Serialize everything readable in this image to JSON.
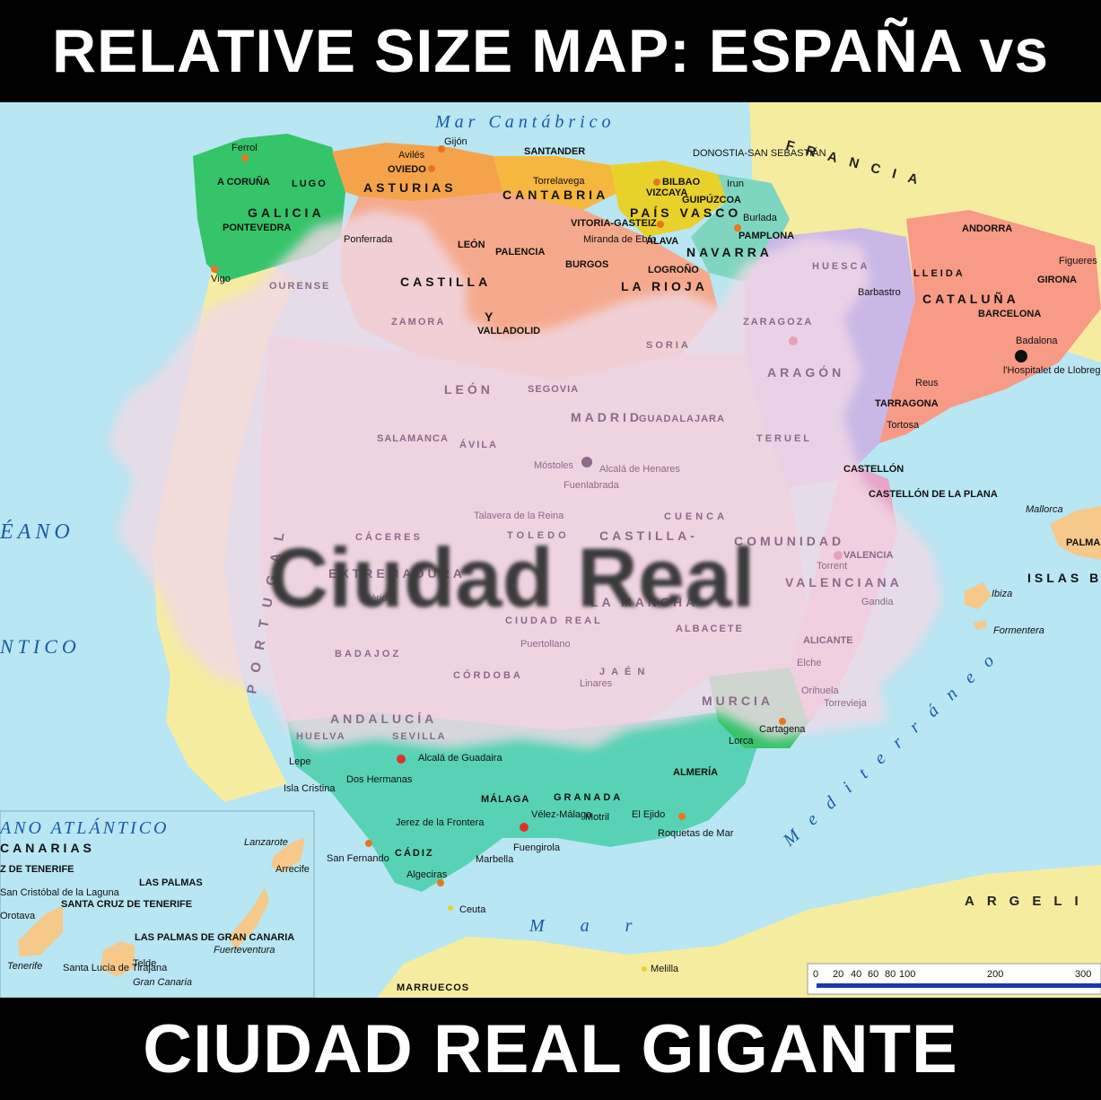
{
  "header": {
    "title": "RELATIVE SIZE MAP: ESPAÑA vs"
  },
  "footer": {
    "title": "CIUDAD REAL GIGANTE"
  },
  "overlay": {
    "label": "Ciudad Real"
  },
  "seas": {
    "cantabrico": "Mar Cantábrico",
    "oceano_left": "ÉANO",
    "atlantico_left": "NTICO",
    "mediterraneo": "Mediterráneo",
    "mar_bottom": "Mar",
    "canarias_ocean": "ANO ATLÁNTICO"
  },
  "countries": {
    "francia": "FRANCIA",
    "andorra": "ANDORRA",
    "portugal": "PORTUGAL",
    "argelia": "ARGELI",
    "marruecos": "MARRUECOS"
  },
  "regions": {
    "galicia": "GALICIA",
    "asturias": "ASTURIAS",
    "cantabria": "CANTABRIA",
    "pais_vasco": "PAÍS VASCO",
    "navarra": "NAVARRA",
    "la_rioja": "LA RIOJA",
    "castilla": "CASTILLA",
    "leon_region": "LEÓN",
    "y": "Y",
    "aragon": "ARAGÓN",
    "cataluna": "CATALUÑA",
    "madrid_region": "MADRID",
    "comunidad": "COMUNIDAD",
    "valenciana": "VALENCIANA",
    "murcia": "MURCIA",
    "andalucia": "ANDALUCÍA",
    "extremadura": "EXTREMADURA",
    "castilla_mancha_1": "CASTILLA-",
    "castilla_mancha_2": "LA MANCHA",
    "islas_baleares": "ISLAS B",
    "canarias": "CANARIAS"
  },
  "provinces": {
    "a_coruna": "A CORUÑA",
    "lugo": "LUGO",
    "ourense": "OURENSE",
    "pontevedra": "PONTEVEDRA",
    "oviedo": "OVIEDO",
    "santander": "SANTANDER",
    "bilbao": "BILBAO",
    "vizcaya": "VIZCAYA",
    "guipuzcoa": "GUIPÚZCOA",
    "alava": "ÁLAVA",
    "pamplona": "PAMPLONA",
    "logrono": "LOGROÑO",
    "burgos": "BURGOS",
    "palencia": "PALENCIA",
    "leon": "LEÓN",
    "zamora": "ZAMORA",
    "valladolid": "VALLADOLID",
    "soria": "SORIA",
    "segovia": "SEGOVIA",
    "avila": "ÁVILA",
    "salamanca": "SALAMANCA",
    "huesca": "HUESCA",
    "zaragoza": "ZARAGOZA",
    "teruel": "TERUEL",
    "lleida": "LLEIDA",
    "girona": "GIRONA",
    "barcelona": "BARCELONA",
    "tarragona": "TARRAGONA",
    "guadalajara": "GUADALAJARA",
    "cuenca": "CUENCA",
    "toledo": "TOLEDO",
    "caceres": "CÁCERES",
    "badajoz": "BADAJOZ",
    "ciudad_real": "CIUDAD REAL",
    "albacete": "ALBACETE",
    "castellon": "CASTELLÓN",
    "valencia": "VALENCIA",
    "alicante": "ALICANTE",
    "cordoba": "CÓRDOBA",
    "jaen": "JAÉN",
    "huelva": "HUELVA",
    "sevilla": "SEVILLA",
    "cadiz": "CÁDIZ",
    "malaga": "MÁLAGA",
    "granada": "GRANADA",
    "almeria": "ALMERÍA",
    "las_palmas": "LAS PALMAS",
    "santa_cruz": "SANTA CRUZ DE TENERIFE"
  },
  "cities": {
    "ferrol": "Ferrol",
    "gijon": "Gijón",
    "aviles": "Avilés",
    "vigo": "Vigo",
    "ponferrada": "Ponferrada",
    "torrelavega": "Torrelavega",
    "donostia": "DONOSTIA-SAN SEBASTIÁN",
    "irun": "Irun",
    "vitoria": "VITORIA-GASTEIZ",
    "miranda": "Miranda de Ebro",
    "burlada": "Burlada",
    "barbastro": "Barbastro",
    "figueres": "Figueres",
    "badalona": "Badalona",
    "hospitalet": "l'Hospitalet de Llobregat",
    "reus": "Reus",
    "tortosa": "Tortosa",
    "mostoles": "Móstoles",
    "fuenlabrada": "Fuenlabrada",
    "alcala_henares": "Alcalá de Henares",
    "talavera": "Talavera de la Reina",
    "merida": "Mérida",
    "puertollano": "Puertollano",
    "castellon_plana": "CASTELLÓN DE LA PLANA",
    "torrent": "Torrent",
    "gandia": "Gandia",
    "elche": "Elche",
    "orihuela": "Orihuela",
    "torrevieja": "Torrevieja",
    "cartagena": "Cartagena",
    "lorca": "Lorca",
    "linares": "Linares",
    "alcala_guadaira": "Alcalá de Guadaira",
    "dos_hermanas": "Dos Hermanas",
    "jerez": "Jerez de la Frontera",
    "algeciras": "Algeciras",
    "marbella": "Marbella",
    "fuengirola": "Fuengirola",
    "velez_malaga": "Vélez-Málaga",
    "motril": "Motril",
    "el_ejido": "El Ejido",
    "roquetas": "Roquetas de Mar",
    "ceuta": "Ceuta",
    "melilla": "Melilla",
    "san_fernando": "San Fernando",
    "lepe": "Lepe",
    "isla_cristina": "Isla Cristina",
    "lorca_label": "Lorca",
    "mallorca": "Mallorca",
    "ibiza": "Ibiza",
    "formentera": "Formentera",
    "palma": "PALMA",
    "lanzarote": "Lanzarote",
    "arrecife": "Arrecife",
    "fuerteventura": "Fuerteventura",
    "gran_canaria": "Gran Canaria",
    "tenerife": "Tenerife",
    "telde": "Telde",
    "las_palmas_gc": "LAS PALMAS DE GRAN CANARIA",
    "santa_lucia": "Santa Lucía de Tirajana",
    "la_laguna": "San Cristóbal de la Laguna",
    "orotava": "Orotava",
    "z_tenerife": "Z DE TENERIFE"
  },
  "scale": {
    "ticks": [
      "0",
      "20",
      "40",
      "60",
      "80",
      "100",
      "200",
      "300"
    ]
  },
  "colors": {
    "sea": "#b8e6f2",
    "land_foreign": "#f6eca0",
    "galicia": "#35c46a",
    "asturias": "#f5a34a",
    "cantabria": "#f5b73d",
    "pais_vasco": "#e8d12a",
    "navarra": "#7fd6c0",
    "castilla_leon": "#f5a98c",
    "aragon": "#c9b7e6",
    "cataluna": "#f79a86",
    "andalucia": "#58d2b4",
    "overlay": "#f1d9e6"
  }
}
